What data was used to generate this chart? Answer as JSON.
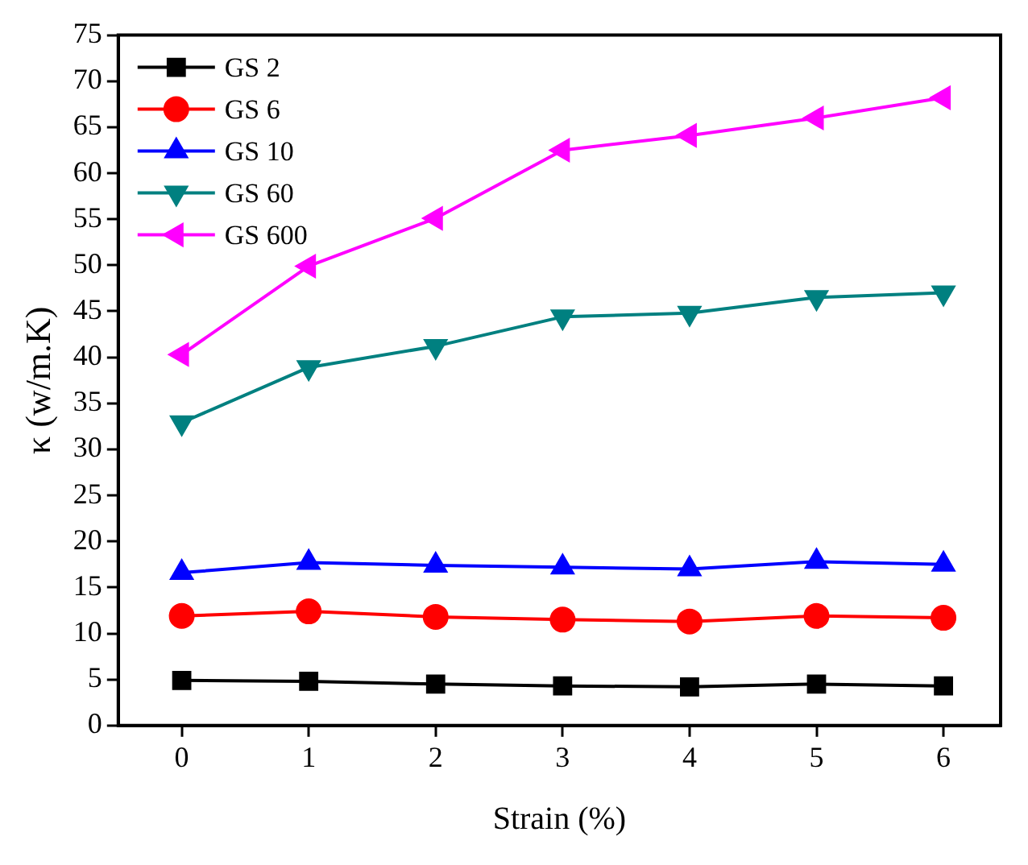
{
  "chart_data": {
    "type": "line",
    "xlabel": "Strain (%)",
    "ylabel": "κ (w/m.K)",
    "x": [
      0,
      1,
      2,
      3,
      4,
      5,
      6
    ],
    "xlim": [
      -0.5,
      6.45
    ],
    "xticks": [
      0,
      1,
      2,
      3,
      4,
      5,
      6
    ],
    "ylim": [
      0,
      75
    ],
    "yticks": [
      0,
      5,
      10,
      15,
      20,
      25,
      30,
      35,
      40,
      45,
      50,
      55,
      60,
      65,
      70,
      75
    ],
    "legend": "top left",
    "grid": false,
    "series": [
      {
        "name": "GS 2",
        "color": "#000000",
        "marker": "square",
        "values": [
          4.9,
          4.8,
          4.5,
          4.3,
          4.2,
          4.5,
          4.3
        ]
      },
      {
        "name": "GS 6",
        "color": "#ff0000",
        "marker": "circle",
        "values": [
          11.9,
          12.4,
          11.8,
          11.5,
          11.3,
          11.9,
          11.7
        ]
      },
      {
        "name": "GS 10",
        "color": "#0000ff",
        "marker": "triangle",
        "values": [
          16.6,
          17.7,
          17.4,
          17.2,
          17.0,
          17.8,
          17.5
        ]
      },
      {
        "name": "GS 60",
        "color": "#008080",
        "marker": "triangle-down",
        "values": [
          32.9,
          38.9,
          41.2,
          44.4,
          44.8,
          46.5,
          47.0
        ]
      },
      {
        "name": "GS 600",
        "color": "#ff00ff",
        "marker": "triangle-left",
        "values": [
          40.3,
          49.9,
          55.1,
          62.5,
          64.1,
          66.0,
          68.2
        ]
      }
    ]
  }
}
